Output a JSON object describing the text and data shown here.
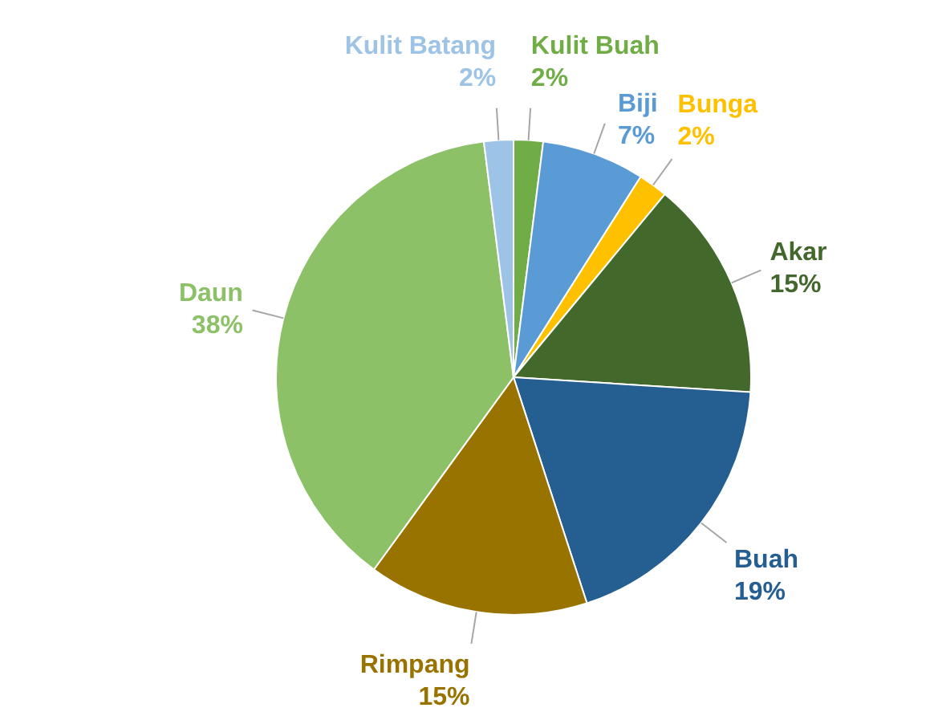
{
  "chart_data": {
    "type": "pie",
    "categories": [
      "Kulit Buah",
      "Biji",
      "Bunga",
      "Akar",
      "Buah",
      "Rimpang",
      "Daun",
      "Kulit Batang"
    ],
    "values": [
      2,
      7,
      2,
      15,
      19,
      15,
      38,
      2
    ],
    "colors": [
      "#70ad47",
      "#5b9bd5",
      "#ffc000",
      "#43682b",
      "#255e91",
      "#997300",
      "#8cc168",
      "#9dc3e6"
    ],
    "value_labels": [
      "2%",
      "7%",
      "2%",
      "15%",
      "19%",
      "15%",
      "38%",
      "2%"
    ],
    "legend": false
  }
}
